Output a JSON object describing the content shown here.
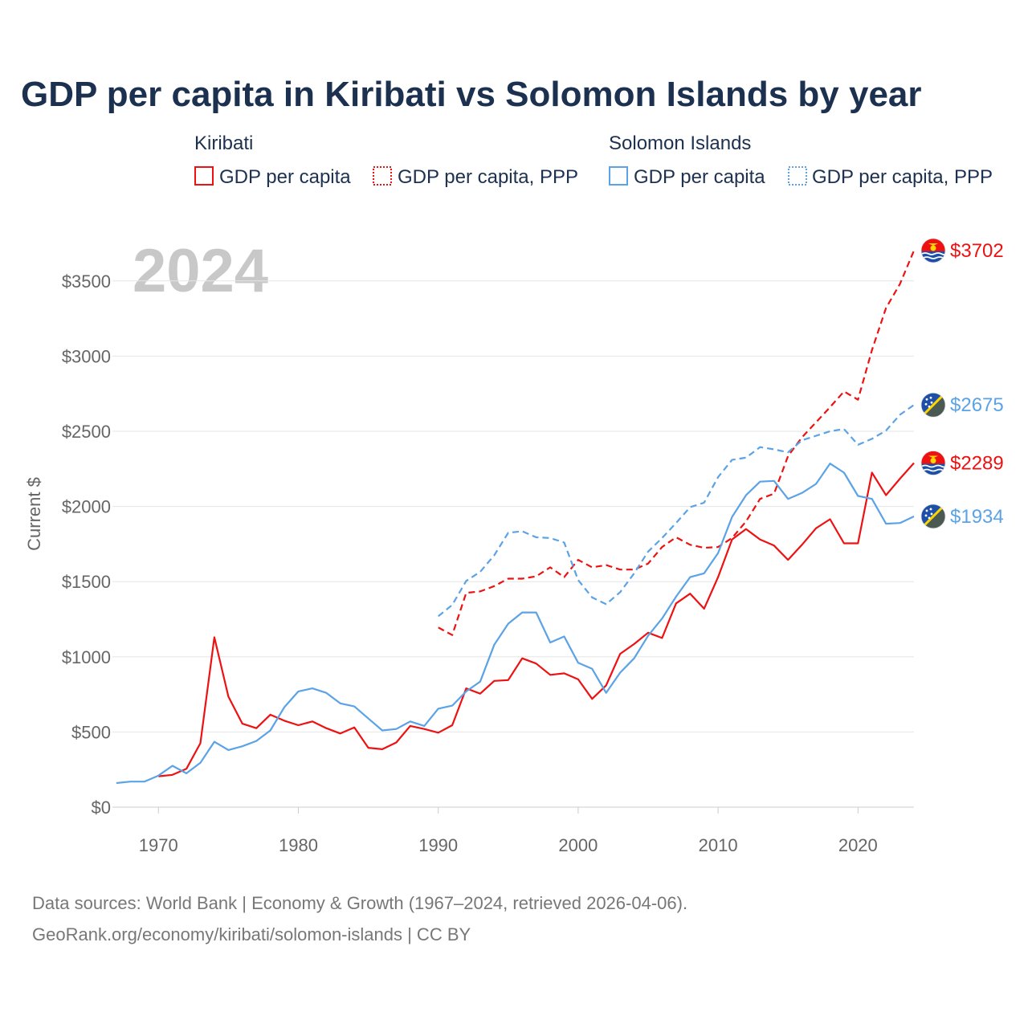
{
  "title": "GDP per capita in Kiribati vs Solomon Islands by year",
  "year_watermark": "2024",
  "colors": {
    "kiribati": "#ee1111",
    "solomon": "#5ba3e6",
    "grid": "#e6e6e6",
    "title": "#1c3150"
  },
  "legend": {
    "kiribati": {
      "title": "Kiribati",
      "gdp": "GDP per capita",
      "ppp": "GDP per capita, PPP"
    },
    "solomon": {
      "title": "Solomon Islands",
      "gdp": "GDP per capita",
      "ppp": "GDP per capita, PPP"
    }
  },
  "footer": {
    "line1": "Data sources: World Bank | Economy & Growth (1967–2024, retrieved 2026-04-06).",
    "line2": "GeoRank.org/economy/kiribati/solomon-islands | CC BY"
  },
  "chart_data": {
    "type": "line",
    "title": "GDP per capita in Kiribati vs Solomon Islands by year",
    "xlabel": "",
    "ylabel": "Current $",
    "xlim": [
      1967,
      2024
    ],
    "ylim": [
      0,
      3700
    ],
    "x_ticks": [
      1970,
      1980,
      1990,
      2000,
      2010,
      2020
    ],
    "x_tick_labels": [
      "1970",
      "1980",
      "1990",
      "2000",
      "2010",
      "2020"
    ],
    "y_ticks": [
      0,
      500,
      1000,
      1500,
      2000,
      2500,
      3000,
      3500
    ],
    "y_tick_labels": [
      "$0",
      "$500",
      "$1000",
      "$1500",
      "$2000",
      "$2500",
      "$3000",
      "$3500"
    ],
    "series": [
      {
        "name": "Kiribati GDP per capita",
        "country": "kiribati",
        "style": "solid",
        "x": [
          1970,
          1971,
          1972,
          1973,
          1974,
          1975,
          1976,
          1977,
          1978,
          1979,
          1980,
          1981,
          1982,
          1983,
          1984,
          1985,
          1986,
          1987,
          1988,
          1989,
          1990,
          1991,
          1992,
          1993,
          1994,
          1995,
          1996,
          1997,
          1998,
          1999,
          2000,
          2001,
          2002,
          2003,
          2004,
          2005,
          2006,
          2007,
          2008,
          2009,
          2010,
          2011,
          2012,
          2013,
          2014,
          2015,
          2016,
          2017,
          2018,
          2019,
          2020,
          2021,
          2022,
          2023,
          2024
        ],
        "values": [
          205,
          215,
          255,
          425,
          1130,
          735,
          555,
          525,
          615,
          575,
          545,
          570,
          525,
          490,
          530,
          395,
          385,
          430,
          540,
          520,
          495,
          545,
          790,
          755,
          840,
          845,
          990,
          955,
          880,
          890,
          850,
          720,
          810,
          1020,
          1085,
          1160,
          1125,
          1355,
          1420,
          1320,
          1530,
          1780,
          1850,
          1780,
          1740,
          1645,
          1745,
          1855,
          1915,
          1755,
          1755,
          2225,
          2075,
          2185,
          2289
        ]
      },
      {
        "name": "Kiribati GDP per capita, PPP",
        "country": "kiribati",
        "style": "dashed",
        "x": [
          1990,
          1991,
          1992,
          1993,
          1994,
          1995,
          1996,
          1997,
          1998,
          1999,
          2000,
          2001,
          2002,
          2003,
          2004,
          2005,
          2006,
          2007,
          2008,
          2009,
          2010,
          2011,
          2012,
          2013,
          2014,
          2015,
          2016,
          2017,
          2018,
          2019,
          2020,
          2021,
          2022,
          2023,
          2024
        ],
        "values": [
          1195,
          1145,
          1425,
          1435,
          1470,
          1520,
          1520,
          1535,
          1595,
          1530,
          1645,
          1595,
          1610,
          1580,
          1580,
          1620,
          1730,
          1795,
          1745,
          1725,
          1730,
          1790,
          1900,
          2050,
          2085,
          2335,
          2460,
          2560,
          2660,
          2765,
          2710,
          3040,
          3320,
          3480,
          3702
        ]
      },
      {
        "name": "Solomon Islands GDP per capita",
        "country": "solomon",
        "style": "solid",
        "x": [
          1967,
          1968,
          1969,
          1970,
          1971,
          1972,
          1973,
          1974,
          1975,
          1976,
          1977,
          1978,
          1979,
          1980,
          1981,
          1982,
          1983,
          1984,
          1985,
          1986,
          1987,
          1988,
          1989,
          1990,
          1991,
          1992,
          1993,
          1994,
          1995,
          1996,
          1997,
          1998,
          1999,
          2000,
          2001,
          2002,
          2003,
          2004,
          2005,
          2006,
          2007,
          2008,
          2009,
          2010,
          2011,
          2012,
          2013,
          2014,
          2015,
          2016,
          2017,
          2018,
          2019,
          2020,
          2021,
          2022,
          2023,
          2024
        ],
        "values": [
          160,
          170,
          170,
          210,
          275,
          225,
          295,
          435,
          380,
          405,
          440,
          510,
          665,
          770,
          790,
          760,
          690,
          670,
          590,
          510,
          520,
          570,
          540,
          655,
          675,
          770,
          835,
          1080,
          1220,
          1295,
          1295,
          1095,
          1135,
          960,
          920,
          760,
          895,
          990,
          1140,
          1255,
          1400,
          1530,
          1555,
          1690,
          1930,
          2075,
          2165,
          2170,
          2050,
          2090,
          2150,
          2285,
          2225,
          2070,
          2050,
          1885,
          1890,
          1934
        ]
      },
      {
        "name": "Solomon Islands GDP per capita, PPP",
        "country": "solomon",
        "style": "dashed",
        "x": [
          1990,
          1991,
          1992,
          1993,
          1994,
          1995,
          1996,
          1997,
          1998,
          1999,
          2000,
          2001,
          2002,
          2003,
          2004,
          2005,
          2006,
          2007,
          2008,
          2009,
          2010,
          2011,
          2012,
          2013,
          2014,
          2015,
          2016,
          2017,
          2018,
          2019,
          2020,
          2021,
          2022,
          2023,
          2024
        ],
        "values": [
          1270,
          1345,
          1505,
          1565,
          1675,
          1825,
          1835,
          1795,
          1790,
          1760,
          1510,
          1395,
          1350,
          1430,
          1555,
          1700,
          1790,
          1890,
          1995,
          2025,
          2195,
          2310,
          2325,
          2395,
          2380,
          2360,
          2440,
          2470,
          2500,
          2515,
          2410,
          2450,
          2505,
          2610,
          2675
        ]
      }
    ],
    "end_labels": [
      {
        "country": "kiribati",
        "series": "Kiribati GDP per capita, PPP",
        "text": "$3702",
        "flag": "kiribati-flag-icon"
      },
      {
        "country": "solomon",
        "series": "Solomon Islands GDP per capita, PPP",
        "text": "$2675",
        "flag": "solomon-islands-flag-icon"
      },
      {
        "country": "kiribati",
        "series": "Kiribati GDP per capita",
        "text": "$2289",
        "flag": "kiribati-flag-icon"
      },
      {
        "country": "solomon",
        "series": "Solomon Islands GDP per capita",
        "text": "$1934",
        "flag": "solomon-islands-flag-icon"
      }
    ]
  }
}
